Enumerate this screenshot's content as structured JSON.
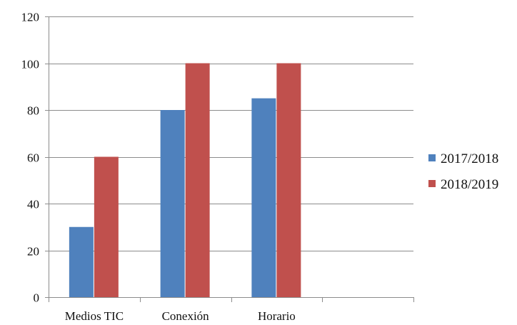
{
  "chart_data": {
    "type": "bar",
    "categories": [
      "Medios  TIC",
      "Conexión",
      "Horario",
      ""
    ],
    "series": [
      {
        "name": "2017/2018",
        "values": [
          30,
          80,
          85,
          null
        ],
        "color": "#4F81BD"
      },
      {
        "name": "2018/2019",
        "values": [
          60,
          100,
          100,
          null
        ],
        "color": "#C0504D"
      }
    ],
    "title": "",
    "xlabel": "",
    "ylabel": "",
    "ylim": [
      0,
      120
    ],
    "yticks": [
      "0",
      "20",
      "40",
      "60",
      "80",
      "100",
      "120"
    ],
    "grid": true,
    "legend_position": "right"
  }
}
